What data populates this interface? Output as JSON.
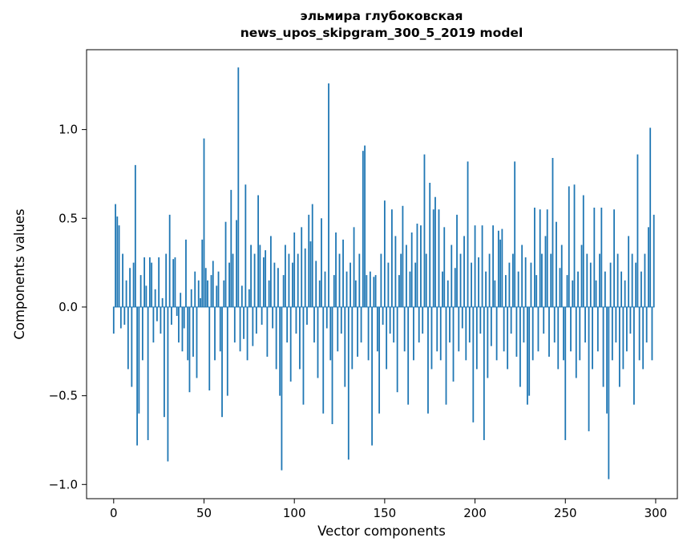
{
  "chart_data": {
    "type": "bar",
    "title_line1": "эльмира глубоковская",
    "title_line2": "news_upos_skipgram_300_5_2019 model",
    "xlabel": "Vector components",
    "ylabel": "Components values",
    "bar_color": "#1f77b4",
    "xlim": [
      -15,
      312
    ],
    "ylim": [
      -1.08,
      1.45
    ],
    "x_ticks": [
      0,
      50,
      100,
      150,
      200,
      250,
      300
    ],
    "x_tick_labels": [
      "0",
      "50",
      "100",
      "150",
      "200",
      "250",
      "300"
    ],
    "y_ticks": [
      -1.0,
      -0.5,
      0.0,
      0.5,
      1.0
    ],
    "y_tick_labels": [
      "−1.0",
      "−0.5",
      "0.0",
      "0.5",
      "1.0"
    ],
    "n_components": 300,
    "values": [
      -0.15,
      0.58,
      0.51,
      0.46,
      -0.12,
      0.3,
      -0.1,
      0.15,
      -0.35,
      0.22,
      -0.45,
      0.25,
      0.8,
      -0.78,
      -0.6,
      0.18,
      -0.3,
      0.28,
      0.12,
      -0.75,
      0.28,
      0.25,
      -0.2,
      0.1,
      -0.08,
      0.28,
      -0.15,
      0.05,
      -0.62,
      0.3,
      -0.87,
      0.52,
      -0.1,
      0.27,
      0.28,
      -0.05,
      -0.2,
      0.08,
      -0.25,
      -0.12,
      0.38,
      -0.3,
      -0.48,
      0.1,
      -0.28,
      0.2,
      -0.4,
      0.15,
      0.05,
      0.38,
      0.95,
      0.22,
      0.15,
      -0.47,
      0.18,
      0.26,
      -0.3,
      0.12,
      0.2,
      -0.25,
      -0.62,
      0.15,
      0.48,
      -0.5,
      0.25,
      0.66,
      0.3,
      -0.2,
      0.49,
      1.35,
      -0.25,
      0.12,
      -0.18,
      0.69,
      -0.3,
      0.1,
      0.35,
      -0.22,
      0.3,
      -0.15,
      0.63,
      0.35,
      -0.1,
      0.28,
      0.32,
      -0.28,
      0.15,
      0.4,
      -0.12,
      0.25,
      -0.35,
      0.22,
      -0.5,
      -0.92,
      0.18,
      0.35,
      -0.2,
      0.3,
      -0.42,
      0.25,
      0.42,
      -0.15,
      0.3,
      -0.35,
      0.45,
      -0.55,
      0.33,
      -0.1,
      0.52,
      0.37,
      0.58,
      -0.2,
      0.26,
      -0.4,
      0.15,
      0.5,
      -0.6,
      0.2,
      -0.12,
      1.26,
      -0.3,
      -0.66,
      0.18,
      0.42,
      -0.25,
      0.3,
      -0.15,
      0.38,
      -0.45,
      0.2,
      -0.86,
      0.25,
      -0.35,
      0.45,
      0.15,
      -0.28,
      0.3,
      -0.2,
      0.88,
      0.91,
      0.18,
      -0.3,
      0.2,
      -0.78,
      0.17,
      0.18,
      -0.25,
      -0.6,
      0.3,
      -0.1,
      0.6,
      -0.35,
      0.25,
      -0.15,
      0.55,
      -0.2,
      0.4,
      -0.48,
      0.18,
      0.3,
      0.57,
      -0.25,
      0.35,
      -0.55,
      0.2,
      0.42,
      -0.3,
      0.25,
      0.47,
      -0.2,
      0.46,
      -0.15,
      0.86,
      0.3,
      -0.6,
      0.7,
      -0.35,
      0.55,
      0.62,
      -0.25,
      0.55,
      -0.3,
      0.2,
      0.45,
      -0.55,
      0.15,
      -0.2,
      0.35,
      -0.42,
      0.22,
      0.52,
      -0.25,
      0.3,
      -0.12,
      0.4,
      -0.3,
      0.82,
      -0.2,
      0.25,
      -0.65,
      0.46,
      -0.35,
      0.28,
      -0.15,
      0.46,
      -0.75,
      0.2,
      -0.4,
      0.3,
      -0.22,
      0.46,
      0.15,
      -0.3,
      0.43,
      0.38,
      0.44,
      -0.25,
      0.18,
      -0.35,
      0.25,
      -0.15,
      0.3,
      0.82,
      -0.28,
      0.2,
      -0.45,
      0.35,
      -0.2,
      0.28,
      -0.55,
      -0.5,
      0.25,
      -0.3,
      0.56,
      0.18,
      -0.25,
      0.55,
      0.3,
      -0.15,
      0.4,
      0.55,
      -0.28,
      0.3,
      0.84,
      -0.2,
      0.48,
      -0.35,
      0.22,
      0.35,
      -0.3,
      -0.75,
      0.18,
      0.68,
      -0.25,
      0.15,
      0.69,
      -0.4,
      0.2,
      -0.3,
      0.35,
      0.63,
      -0.2,
      0.3,
      -0.7,
      0.25,
      -0.35,
      0.56,
      0.15,
      -0.25,
      0.3,
      0.56,
      -0.45,
      0.2,
      -0.6,
      -0.97,
      0.25,
      -0.3,
      0.55,
      -0.2,
      0.3,
      -0.45,
      0.2,
      -0.35,
      0.15,
      -0.25,
      0.4,
      -0.15,
      0.3,
      -0.55,
      0.25,
      0.86,
      -0.3,
      0.2,
      -0.35,
      0.3,
      -0.2,
      0.45,
      1.01,
      -0.3,
      0.52
    ]
  }
}
